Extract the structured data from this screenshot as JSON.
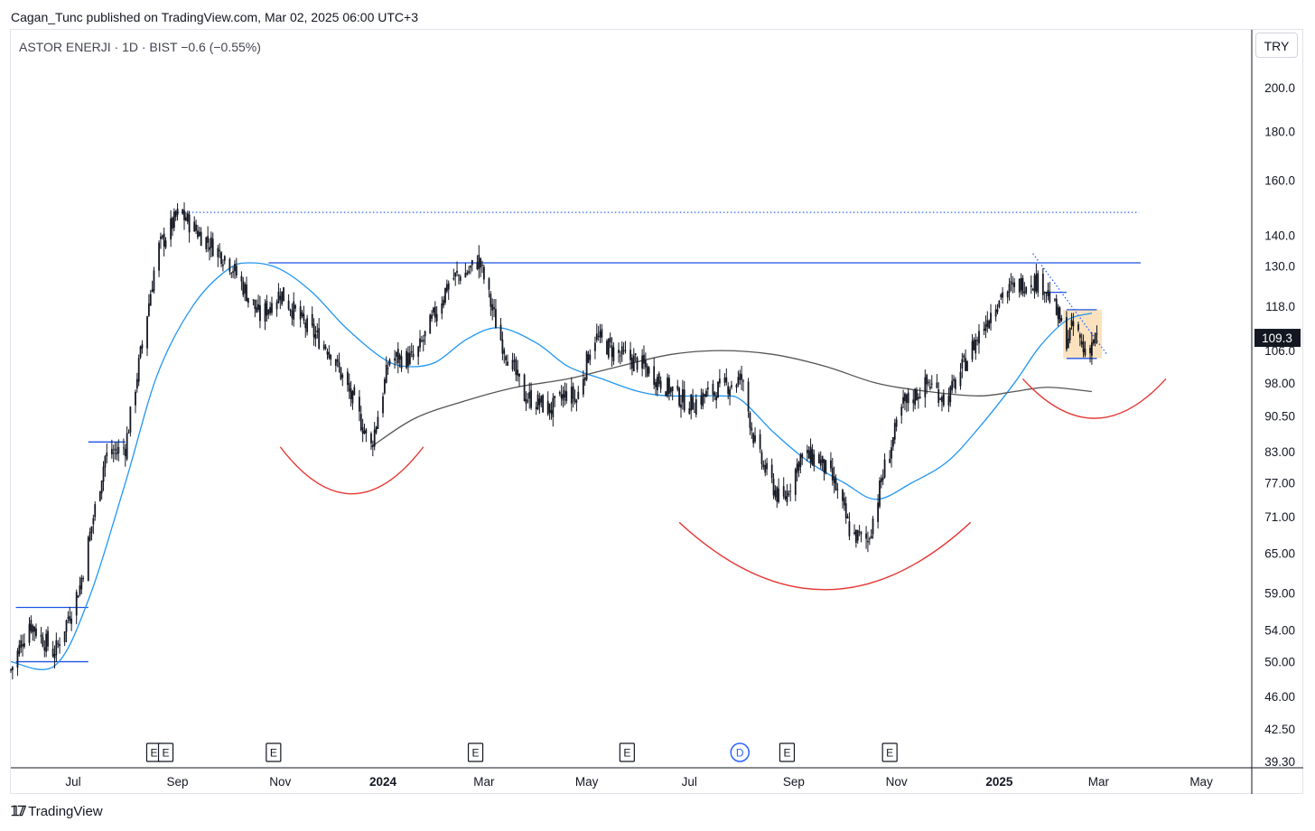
{
  "header": {
    "publisher": "Cagan_Tunc published on TradingView.com, Mar 02, 2025 06:00 UTC+3"
  },
  "legend": {
    "symbol": "ASTOR ENERJI · 1D · BIST",
    "change": "−0.6 (−0.55%)"
  },
  "currency": "TRY",
  "footer": {
    "brand": "TradingView",
    "brand_icon": "tradingview-logo-icon"
  },
  "chart_data": {
    "type": "candlestick",
    "y_scale": "log",
    "ylim": [
      38.7,
      230
    ],
    "xlim": [
      "2023-05-25",
      "2025-05-31"
    ],
    "y_ticks": [
      "200.0",
      "180.0",
      "160.0",
      "140.0",
      "130.0",
      "118.0",
      "106.0",
      "98.00",
      "90.50",
      "83.00",
      "77.00",
      "71.00",
      "65.00",
      "59.00",
      "54.00",
      "50.00",
      "46.00",
      "42.50",
      "39.30"
    ],
    "x_ticks": [
      {
        "label": "Jul",
        "date": "2023-07-01",
        "bold": false
      },
      {
        "label": "Sep",
        "date": "2023-09-01",
        "bold": false
      },
      {
        "label": "Nov",
        "date": "2023-11-01",
        "bold": false
      },
      {
        "label": "2024",
        "date": "2024-01-01",
        "bold": true
      },
      {
        "label": "Mar",
        "date": "2024-03-01",
        "bold": false
      },
      {
        "label": "May",
        "date": "2024-05-01",
        "bold": false
      },
      {
        "label": "Jul",
        "date": "2024-07-01",
        "bold": false
      },
      {
        "label": "Sep",
        "date": "2024-09-01",
        "bold": false
      },
      {
        "label": "Nov",
        "date": "2024-11-01",
        "bold": false
      },
      {
        "label": "2025",
        "date": "2025-01-01",
        "bold": true
      },
      {
        "label": "Mar",
        "date": "2025-03-01",
        "bold": false
      },
      {
        "label": "May",
        "date": "2025-05-01",
        "bold": false
      }
    ],
    "last_price": {
      "value": 109.3,
      "label": "109.3"
    },
    "price_anchors": [
      [
        "2023-05-25",
        49
      ],
      [
        "2023-06-05",
        55
      ],
      [
        "2023-06-20",
        51
      ],
      [
        "2023-07-05",
        60
      ],
      [
        "2023-07-20",
        82
      ],
      [
        "2023-08-01",
        84
      ],
      [
        "2023-08-10",
        105
      ],
      [
        "2023-08-20",
        135
      ],
      [
        "2023-09-02",
        148
      ],
      [
        "2023-09-15",
        140
      ],
      [
        "2023-10-01",
        132
      ],
      [
        "2023-10-20",
        115
      ],
      [
        "2023-11-01",
        122
      ],
      [
        "2023-11-15",
        113
      ],
      [
        "2023-12-01",
        106
      ],
      [
        "2023-12-15",
        93
      ],
      [
        "2023-12-25",
        84
      ],
      [
        "2024-01-05",
        104
      ],
      [
        "2024-01-20",
        104
      ],
      [
        "2024-02-01",
        116
      ],
      [
        "2024-02-10",
        126
      ],
      [
        "2024-02-20",
        128
      ],
      [
        "2024-02-27",
        132
      ],
      [
        "2024-03-10",
        110
      ],
      [
        "2024-03-25",
        95
      ],
      [
        "2024-04-10",
        92
      ],
      [
        "2024-04-20",
        96
      ],
      [
        "2024-04-25",
        94
      ],
      [
        "2024-05-05",
        110
      ],
      [
        "2024-05-20",
        105
      ],
      [
        "2024-06-01",
        103
      ],
      [
        "2024-06-15",
        98
      ],
      [
        "2024-07-01",
        93
      ],
      [
        "2024-07-15",
        96
      ],
      [
        "2024-08-01",
        99
      ],
      [
        "2024-08-10",
        83
      ],
      [
        "2024-08-25",
        73
      ],
      [
        "2024-09-05",
        82
      ],
      [
        "2024-09-15",
        82
      ],
      [
        "2024-09-25",
        77
      ],
      [
        "2024-10-05",
        68
      ],
      [
        "2024-10-15",
        67
      ],
      [
        "2024-10-25",
        80
      ],
      [
        "2024-11-05",
        93
      ],
      [
        "2024-11-20",
        98
      ],
      [
        "2024-12-01",
        94
      ],
      [
        "2024-12-15",
        106
      ],
      [
        "2025-01-01",
        121
      ],
      [
        "2025-01-20",
        126
      ],
      [
        "2025-01-28",
        124
      ],
      [
        "2025-02-05",
        115
      ],
      [
        "2025-02-10",
        109
      ],
      [
        "2025-02-15",
        113
      ],
      [
        "2025-02-20",
        106
      ],
      [
        "2025-02-28",
        109.3
      ]
    ],
    "moving_averages": [
      {
        "color": "#2196f3",
        "points": [
          [
            "2023-05-25",
            50
          ],
          [
            "2023-06-20",
            49.5
          ],
          [
            "2023-07-10",
            58
          ],
          [
            "2023-08-01",
            77
          ],
          [
            "2023-08-20",
            100
          ],
          [
            "2023-09-10",
            118
          ],
          [
            "2023-10-01",
            129
          ],
          [
            "2023-10-15",
            131
          ],
          [
            "2023-11-01",
            129
          ],
          [
            "2023-11-20",
            122
          ],
          [
            "2023-12-10",
            112
          ],
          [
            "2024-01-01",
            104
          ],
          [
            "2024-01-15",
            102
          ],
          [
            "2024-02-01",
            103
          ],
          [
            "2024-02-20",
            109
          ],
          [
            "2024-03-10",
            112
          ],
          [
            "2024-04-01",
            108
          ],
          [
            "2024-04-20",
            102
          ],
          [
            "2024-05-10",
            99
          ],
          [
            "2024-06-01",
            96
          ],
          [
            "2024-06-20",
            95
          ],
          [
            "2024-07-20",
            95
          ],
          [
            "2024-08-01",
            94
          ],
          [
            "2024-08-20",
            87
          ],
          [
            "2024-09-10",
            81
          ],
          [
            "2024-10-01",
            77
          ],
          [
            "2024-10-20",
            74
          ],
          [
            "2024-11-10",
            77
          ],
          [
            "2024-12-01",
            81
          ],
          [
            "2024-12-20",
            88
          ],
          [
            "2025-01-10",
            98
          ],
          [
            "2025-01-25",
            107
          ],
          [
            "2025-02-10",
            114
          ],
          [
            "2025-02-25",
            116
          ]
        ]
      },
      {
        "color": "#555555",
        "points": [
          [
            "2023-12-25",
            84
          ],
          [
            "2024-01-20",
            90
          ],
          [
            "2024-02-20",
            94
          ],
          [
            "2024-03-20",
            97
          ],
          [
            "2024-04-20",
            99
          ],
          [
            "2024-05-20",
            102
          ],
          [
            "2024-06-20",
            105
          ],
          [
            "2024-07-20",
            106
          ],
          [
            "2024-08-20",
            105
          ],
          [
            "2024-09-20",
            102
          ],
          [
            "2024-10-20",
            98
          ],
          [
            "2024-11-20",
            96
          ],
          [
            "2024-12-20",
            95
          ],
          [
            "2025-01-10",
            96
          ],
          [
            "2025-01-30",
            97
          ],
          [
            "2025-02-25",
            96
          ]
        ]
      }
    ],
    "horizontal_levels": [
      {
        "value": 148,
        "from": "2023-08-30",
        "to": "2025-03-25",
        "style": "dotted",
        "color": "#2962ff"
      },
      {
        "value": 131,
        "from": "2023-10-25",
        "to": "2025-03-26",
        "style": "solid",
        "color": "#1e53e5"
      },
      {
        "value": 85,
        "from": "2023-07-10",
        "to": "2023-08-01",
        "style": "solid",
        "color": "#1e53e5"
      },
      {
        "value": 57,
        "from": "2023-05-28",
        "to": "2023-07-10",
        "style": "solid",
        "color": "#1e53e5"
      },
      {
        "value": 50,
        "from": "2023-05-28",
        "to": "2023-07-10",
        "style": "solid",
        "color": "#1e53e5"
      },
      {
        "value": 122,
        "from": "2025-01-28",
        "to": "2025-02-10",
        "style": "solid",
        "color": "#1e53e5"
      },
      {
        "value": 117,
        "from": "2025-02-10",
        "to": "2025-02-28",
        "style": "solid",
        "color": "#1e53e5"
      },
      {
        "value": 104,
        "from": "2025-02-10",
        "to": "2025-02-28",
        "style": "solid",
        "color": "#1e53e5"
      }
    ],
    "trendline": {
      "from": [
        "2025-01-21",
        134
      ],
      "to": [
        "2025-03-06",
        105
      ],
      "style": "dotted",
      "color": "#2962ff"
    },
    "highlight_box": {
      "from": "2025-02-08",
      "to": "2025-03-03",
      "top": 117,
      "bottom": 104,
      "color": "#f8d8a8"
    },
    "arcs": [
      {
        "color": "#e53935",
        "from": [
          "2023-11-01",
          84
        ],
        "to": [
          "2024-01-25",
          84
        ],
        "bottom": 75
      },
      {
        "color": "#e53935",
        "from": [
          "2024-06-25",
          70
        ],
        "to": [
          "2024-12-15",
          70
        ],
        "bottom": 59.5
      },
      {
        "color": "#e53935",
        "from": [
          "2025-01-15",
          99
        ],
        "to": [
          "2025-04-10",
          99
        ],
        "bottom": 90
      }
    ],
    "events": [
      {
        "label": "E",
        "date": "2023-08-18"
      },
      {
        "label": "E",
        "date": "2023-08-25"
      },
      {
        "label": "E",
        "date": "2023-10-28"
      },
      {
        "label": "E",
        "date": "2024-02-25"
      },
      {
        "label": "E",
        "date": "2024-05-25"
      },
      {
        "label": "D",
        "date": "2024-07-31",
        "dividend": true
      },
      {
        "label": "E",
        "date": "2024-08-28"
      },
      {
        "label": "E",
        "date": "2024-10-28"
      }
    ]
  }
}
